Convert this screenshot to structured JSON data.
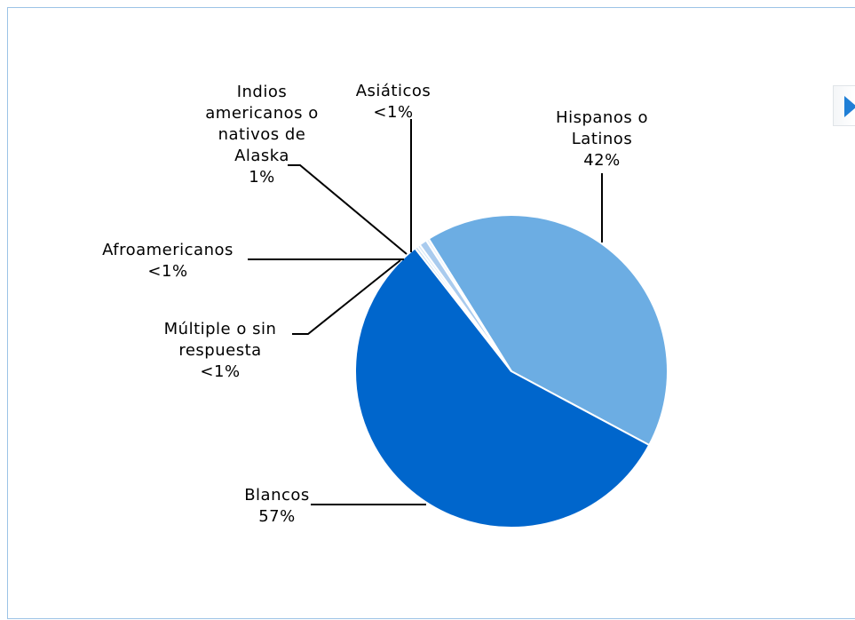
{
  "chart_data": {
    "type": "pie",
    "title": "",
    "start_angle_deg": -32,
    "slices": [
      {
        "label_lines": [
          "Hispanos o",
          "Latinos",
          "42%"
        ],
        "value": 42,
        "display": "42%",
        "color": "#6cade3"
      },
      {
        "label_lines": [
          "Blancos",
          "57%"
        ],
        "value": 57,
        "display": "57%",
        "color": "#0066cc"
      },
      {
        "label_lines": [
          "Múltiple o sin",
          "respuesta",
          "<1%"
        ],
        "value": 0.3,
        "display": "<1%",
        "color": "#c5dcf2"
      },
      {
        "label_lines": [
          "Afroamericanos",
          "<1%"
        ],
        "value": 0.3,
        "display": "<1%",
        "color": "#d7e7f6"
      },
      {
        "label_lines": [
          "Indios",
          "americanos o",
          "nativos de",
          "Alaska",
          "1%"
        ],
        "value": 0.8,
        "display": "1%",
        "color": "#a9cbee"
      },
      {
        "label_lines": [
          "Asiáticos",
          "<1%"
        ],
        "value": 0.3,
        "display": "<1%",
        "color": "#e6f0fa"
      }
    ]
  },
  "side_tab": {
    "icon": "chevron-right-icon",
    "color": "#1f7fd6"
  },
  "frame_color": "#9cc3e6"
}
